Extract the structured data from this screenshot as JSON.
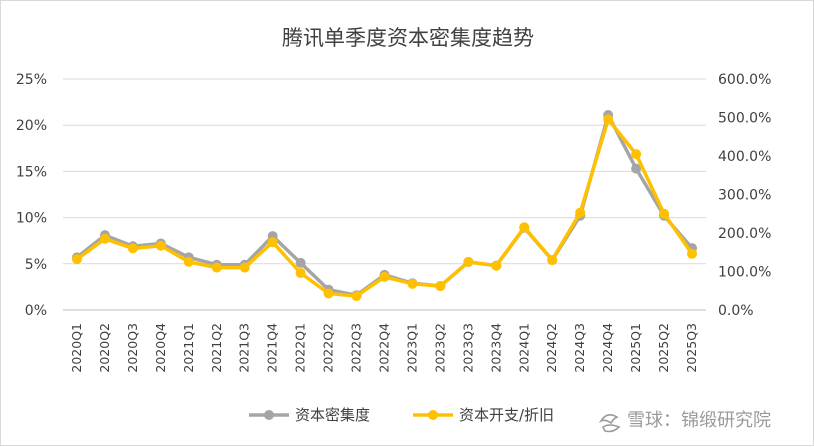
{
  "chart_data": {
    "type": "line",
    "title": "腾讯单季度资本密集度趋势",
    "categories": [
      "2020Q1",
      "2020Q2",
      "2020Q3",
      "2020Q4",
      "2021Q1",
      "2021Q2",
      "2021Q3",
      "2021Q4",
      "2022Q1",
      "2022Q2",
      "2022Q3",
      "2022Q4",
      "2023Q1",
      "2023Q2",
      "2023Q3",
      "2023Q4",
      "2024Q1",
      "2024Q2",
      "2024Q3",
      "2024Q4",
      "2025Q1",
      "2025Q2",
      "2025Q3"
    ],
    "y_left": {
      "ticks": [
        "0%",
        "5%",
        "10%",
        "15%",
        "20%",
        "25%"
      ],
      "ylim": [
        0,
        25
      ]
    },
    "y_right": {
      "ticks": [
        "0.0%",
        "100.0%",
        "200.0%",
        "300.0%",
        "400.0%",
        "500.0%",
        "600.0%"
      ],
      "ylim": [
        0,
        600
      ]
    },
    "grid": true,
    "legend_position": "bottom",
    "series": [
      {
        "name": "资本密集度",
        "axis": "left",
        "color": "#a5a5a5",
        "values": [
          5.7,
          8.1,
          6.9,
          7.2,
          5.7,
          4.9,
          4.9,
          8.0,
          5.1,
          2.2,
          1.6,
          3.8,
          2.9,
          2.6,
          5.2,
          4.8,
          8.9,
          5.4,
          10.2,
          21.1,
          15.3,
          10.2,
          6.7
        ]
      },
      {
        "name": "资本开支/折旧",
        "axis": "right",
        "color": "#ffc000",
        "values": [
          132,
          185,
          160,
          167,
          125,
          110,
          110,
          176,
          96,
          43,
          36,
          86,
          68,
          62,
          125,
          115,
          215,
          130,
          253,
          495,
          405,
          250,
          146
        ]
      }
    ]
  },
  "watermark": {
    "icon": "snowball-logo-icon",
    "text": "雪球：锦缎研究院"
  }
}
